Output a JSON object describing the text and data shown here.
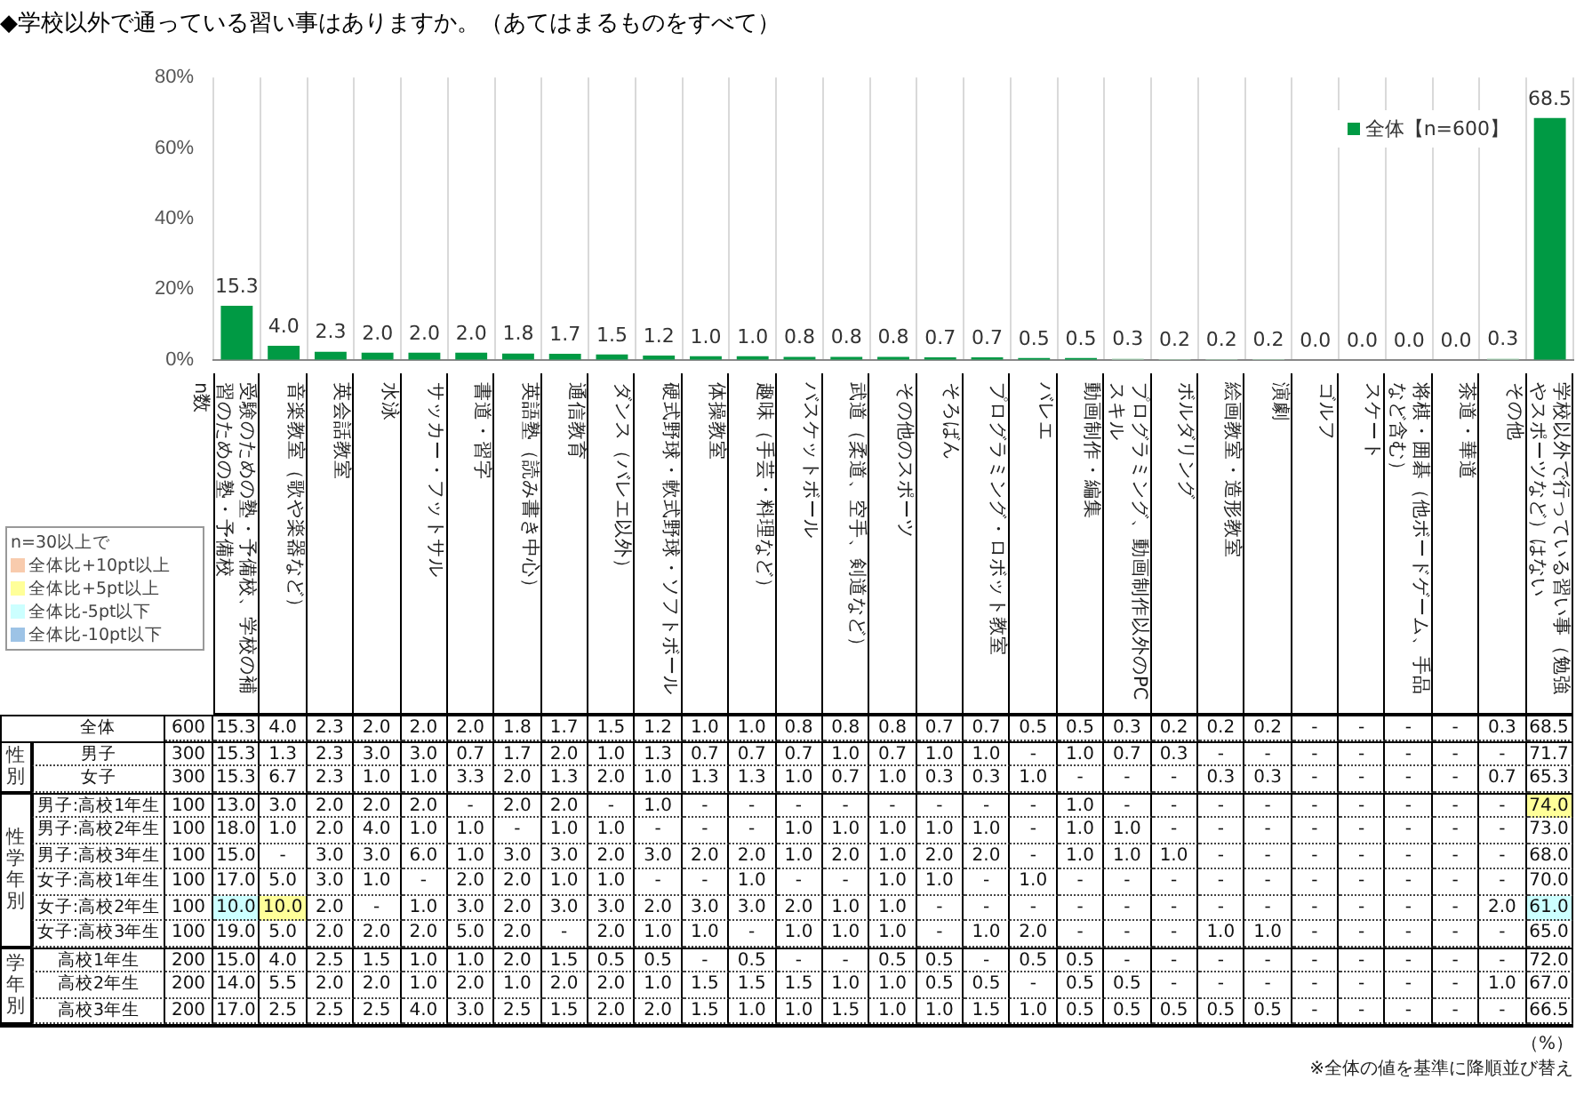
{
  "chart_data": [
    {
      "type": "bar",
      "title": "◆学校以外で通っている習い事はありますか。（あてはまるものをすべて）",
      "categories": [
        null,
        null,
        null,
        null,
        null,
        null,
        null,
        null,
        null,
        null,
        null,
        null,
        null,
        null,
        null,
        null,
        null,
        null,
        null,
        null,
        null,
        null,
        null,
        null,
        null,
        null,
        null,
        null,
        null
      ],
      "series": [
        {
          "name": "全体【n=600】",
          "color": "#009a44",
          "colors": [
            "#009a44",
            "#009a44",
            "#009a44",
            "#009a44",
            "#009a44",
            "#009a44",
            "#009a44",
            "#009a44",
            "#009a44",
            "#009a44",
            "#009a44",
            "#009a44",
            "#009a44",
            "#009a44",
            "#009a44",
            "#009a44",
            "#009a44",
            "#009a44",
            "#009a44",
            "#a8dbb8",
            "#a8dbb8",
            "#a8dbb8",
            "#a8dbb8",
            "#a8dbb8",
            "#a8dbb8",
            "#a8dbb8",
            "#a8dbb8",
            "#a8dbb8",
            "#009a44"
          ],
          "values": [
            15.3,
            4.0,
            2.3,
            2.0,
            2.0,
            2.0,
            1.8,
            1.7,
            1.5,
            1.2,
            1.0,
            1.0,
            0.8,
            0.8,
            0.8,
            0.7,
            0.7,
            0.5,
            0.5,
            0.3,
            0.2,
            0.2,
            0.2,
            0,
            0,
            0,
            0,
            0.3,
            68.5
          ],
          "value_labels": [
            "15.3",
            "4.0",
            "2.3",
            "2.0",
            "2.0",
            "2.0",
            "1.8",
            "1.7",
            "1.5",
            "1.2",
            "1.0",
            "1.0",
            "0.8",
            "0.8",
            "0.8",
            "0.7",
            "0.7",
            "0.5",
            "0.5",
            "0.3",
            "0.2",
            "0.2",
            "0.2",
            "0.0",
            "0.0",
            "0.0",
            "0.0",
            "0.3",
            "68.5"
          ]
        }
      ],
      "ylim": [
        0,
        80
      ],
      "yticks": [
        {
          "value": 0,
          "label": "0%"
        },
        {
          "value": 20,
          "label": "20%"
        },
        {
          "value": 40,
          "label": "40%"
        },
        {
          "value": 60,
          "label": "60%"
        },
        {
          "value": 80,
          "label": "80%"
        }
      ],
      "grid": "x",
      "legend": "top right"
    },
    {
      "type": "heatmap",
      "categories": [
        "n数",
        "受験のための塾・予備校、学校の補習のための塾・予備校",
        "音楽教室（歌や楽器など）",
        "英会話教室",
        "水泳",
        "サッカー・フットサル",
        "書道・習字",
        "英語塾（読み書き中心）",
        "通信教育",
        "ダンス（バレエ以外）",
        "硬式野球・軟式野球・ソフトボール",
        "体操教室",
        "趣味（手芸・料理など）",
        "バスケットボール",
        "武道（柔道、空手、剣道など）",
        "その他のスポーツ",
        "そろばん",
        "プログラミング・ロボット教室",
        "バレエ",
        "動画制作・編集",
        "プログラミング、動画制作以外のPCスキル",
        "ボルダリング",
        "絵画教室・造形教室",
        "演劇",
        "ゴルフ",
        "スケート",
        "将棋・囲碁（他ボードゲーム、手品など含む）",
        "茶道・華道",
        "その他",
        "学校以外で行っている習い事（勉強やスポーツなど）はない"
      ],
      "y_categories": [
        "全体",
        "男子",
        "女子",
        "男子:高校1年生",
        "男子:高校2年生",
        "男子:高校3年生",
        "女子:高校1年生",
        "女子:高校2年生",
        "女子:高校3年生",
        "高校1年生",
        "高校2年生",
        "高校3年生"
      ],
      "cells": [
        [
          600,
          15.3,
          4.0,
          2.3,
          2.0,
          2.0,
          2.0,
          1.8,
          1.7,
          1.5,
          1.2,
          1.0,
          1.0,
          0.8,
          0.8,
          0.8,
          0.7,
          0.7,
          0.5,
          0.5,
          0.3,
          0.2,
          0.2,
          0.2,
          null,
          null,
          null,
          null,
          0.3,
          68.5
        ],
        [
          300,
          15.3,
          1.3,
          2.3,
          3.0,
          3.0,
          0.7,
          1.7,
          2.0,
          1.0,
          1.3,
          0.7,
          0.7,
          0.7,
          1.0,
          0.7,
          1.0,
          1.0,
          null,
          1.0,
          0.7,
          0.3,
          null,
          null,
          null,
          null,
          null,
          null,
          null,
          71.7
        ],
        [
          300,
          15.3,
          6.7,
          2.3,
          1.0,
          1.0,
          3.3,
          2.0,
          1.3,
          2.0,
          1.0,
          1.3,
          1.3,
          1.0,
          0.7,
          1.0,
          0.3,
          0.3,
          1.0,
          null,
          null,
          null,
          0.3,
          0.3,
          null,
          null,
          null,
          null,
          0.7,
          65.3
        ],
        [
          100,
          13.0,
          3.0,
          2.0,
          2.0,
          2.0,
          null,
          2.0,
          2.0,
          null,
          1.0,
          null,
          null,
          null,
          null,
          null,
          null,
          null,
          null,
          1.0,
          null,
          null,
          null,
          null,
          null,
          null,
          null,
          null,
          null,
          74.0
        ],
        [
          100,
          18.0,
          1.0,
          2.0,
          4.0,
          1.0,
          1.0,
          null,
          1.0,
          1.0,
          null,
          null,
          null,
          1.0,
          1.0,
          1.0,
          1.0,
          1.0,
          null,
          1.0,
          1.0,
          null,
          null,
          null,
          null,
          null,
          null,
          null,
          null,
          73.0
        ],
        [
          100,
          15.0,
          null,
          3.0,
          3.0,
          6.0,
          1.0,
          3.0,
          3.0,
          2.0,
          3.0,
          2.0,
          2.0,
          1.0,
          2.0,
          1.0,
          2.0,
          2.0,
          null,
          1.0,
          1.0,
          1.0,
          null,
          null,
          null,
          null,
          null,
          null,
          null,
          68.0
        ],
        [
          100,
          17.0,
          5.0,
          3.0,
          1.0,
          null,
          2.0,
          2.0,
          1.0,
          1.0,
          null,
          null,
          1.0,
          null,
          null,
          1.0,
          1.0,
          null,
          1.0,
          null,
          null,
          null,
          null,
          null,
          null,
          null,
          null,
          null,
          null,
          70.0
        ],
        [
          100,
          10.0,
          10.0,
          2.0,
          null,
          1.0,
          3.0,
          2.0,
          3.0,
          3.0,
          2.0,
          3.0,
          3.0,
          2.0,
          1.0,
          1.0,
          null,
          null,
          null,
          null,
          null,
          null,
          null,
          null,
          null,
          null,
          null,
          null,
          2.0,
          61.0
        ],
        [
          100,
          19.0,
          5.0,
          2.0,
          2.0,
          2.0,
          5.0,
          2.0,
          null,
          2.0,
          1.0,
          1.0,
          null,
          1.0,
          1.0,
          1.0,
          null,
          1.0,
          2.0,
          null,
          null,
          null,
          1.0,
          1.0,
          null,
          null,
          null,
          null,
          null,
          65.0
        ],
        [
          200,
          15.0,
          4.0,
          2.5,
          1.5,
          1.0,
          1.0,
          2.0,
          1.5,
          0.5,
          0.5,
          null,
          0.5,
          null,
          null,
          0.5,
          0.5,
          null,
          0.5,
          0.5,
          null,
          null,
          null,
          null,
          null,
          null,
          null,
          null,
          null,
          72.0
        ],
        [
          200,
          14.0,
          5.5,
          2.0,
          2.0,
          1.0,
          2.0,
          1.0,
          2.0,
          2.0,
          1.0,
          1.5,
          1.5,
          1.5,
          1.0,
          1.0,
          0.5,
          0.5,
          null,
          0.5,
          0.5,
          null,
          null,
          null,
          null,
          null,
          null,
          null,
          1.0,
          67.0
        ],
        [
          200,
          17.0,
          2.5,
          2.5,
          2.5,
          4.0,
          3.0,
          2.5,
          1.5,
          2.0,
          2.0,
          1.5,
          1.0,
          1.0,
          1.5,
          1.0,
          1.0,
          1.5,
          1.0,
          0.5,
          0.5,
          0.5,
          0.5,
          0.5,
          null,
          null,
          null,
          null,
          null,
          66.5
        ]
      ],
      "cell_labels": [
        [
          "600",
          "15.3",
          "4.0",
          "2.3",
          "2.0",
          "2.0",
          "2.0",
          "1.8",
          "1.7",
          "1.5",
          "1.2",
          "1.0",
          "1.0",
          "0.8",
          "0.8",
          "0.8",
          "0.7",
          "0.7",
          "0.5",
          "0.5",
          "0.3",
          "0.2",
          "0.2",
          "0.2",
          "-",
          "-",
          "-",
          "-",
          "0.3",
          "68.5"
        ],
        [
          "300",
          "15.3",
          "1.3",
          "2.3",
          "3.0",
          "3.0",
          "0.7",
          "1.7",
          "2.0",
          "1.0",
          "1.3",
          "0.7",
          "0.7",
          "0.7",
          "1.0",
          "0.7",
          "1.0",
          "1.0",
          "-",
          "1.0",
          "0.7",
          "0.3",
          "-",
          "-",
          "-",
          "-",
          "-",
          "-",
          "-",
          "71.7"
        ],
        [
          "300",
          "15.3",
          "6.7",
          "2.3",
          "1.0",
          "1.0",
          "3.3",
          "2.0",
          "1.3",
          "2.0",
          "1.0",
          "1.3",
          "1.3",
          "1.0",
          "0.7",
          "1.0",
          "0.3",
          "0.3",
          "1.0",
          "-",
          "-",
          "-",
          "0.3",
          "0.3",
          "-",
          "-",
          "-",
          "-",
          "0.7",
          "65.3"
        ],
        [
          "100",
          "13.0",
          "3.0",
          "2.0",
          "2.0",
          "2.0",
          "-",
          "2.0",
          "2.0",
          "-",
          "1.0",
          "-",
          "-",
          "-",
          "-",
          "-",
          "-",
          "-",
          "-",
          "1.0",
          "-",
          "-",
          "-",
          "-",
          "-",
          "-",
          "-",
          "-",
          "-",
          "74.0"
        ],
        [
          "100",
          "18.0",
          "1.0",
          "2.0",
          "4.0",
          "1.0",
          "1.0",
          "-",
          "1.0",
          "1.0",
          "-",
          "-",
          "-",
          "1.0",
          "1.0",
          "1.0",
          "1.0",
          "1.0",
          "-",
          "1.0",
          "1.0",
          "-",
          "-",
          "-",
          "-",
          "-",
          "-",
          "-",
          "-",
          "73.0"
        ],
        [
          "100",
          "15.0",
          "-",
          "3.0",
          "3.0",
          "6.0",
          "1.0",
          "3.0",
          "3.0",
          "2.0",
          "3.0",
          "2.0",
          "2.0",
          "1.0",
          "2.0",
          "1.0",
          "2.0",
          "2.0",
          "-",
          "1.0",
          "1.0",
          "1.0",
          "-",
          "-",
          "-",
          "-",
          "-",
          "-",
          "-",
          "68.0"
        ],
        [
          "100",
          "17.0",
          "5.0",
          "3.0",
          "1.0",
          "-",
          "2.0",
          "2.0",
          "1.0",
          "1.0",
          "-",
          "-",
          "1.0",
          "-",
          "-",
          "1.0",
          "1.0",
          "-",
          "1.0",
          "-",
          "-",
          "-",
          "-",
          "-",
          "-",
          "-",
          "-",
          "-",
          "-",
          "70.0"
        ],
        [
          "100",
          "10.0",
          "10.0",
          "2.0",
          "-",
          "1.0",
          "3.0",
          "2.0",
          "3.0",
          "3.0",
          "2.0",
          "3.0",
          "3.0",
          "2.0",
          "1.0",
          "1.0",
          "-",
          "-",
          "-",
          "-",
          "-",
          "-",
          "-",
          "-",
          "-",
          "-",
          "-",
          "-",
          "2.0",
          "61.0"
        ],
        [
          "100",
          "19.0",
          "5.0",
          "2.0",
          "2.0",
          "2.0",
          "5.0",
          "2.0",
          "-",
          "2.0",
          "1.0",
          "1.0",
          "-",
          "1.0",
          "1.0",
          "1.0",
          "-",
          "1.0",
          "2.0",
          "-",
          "-",
          "-",
          "1.0",
          "1.0",
          "-",
          "-",
          "-",
          "-",
          "-",
          "65.0"
        ],
        [
          "200",
          "15.0",
          "4.0",
          "2.5",
          "1.5",
          "1.0",
          "1.0",
          "2.0",
          "1.5",
          "0.5",
          "0.5",
          "-",
          "0.5",
          "-",
          "-",
          "0.5",
          "0.5",
          "-",
          "0.5",
          "0.5",
          "-",
          "-",
          "-",
          "-",
          "-",
          "-",
          "-",
          "-",
          "-",
          "72.0"
        ],
        [
          "200",
          "14.0",
          "5.5",
          "2.0",
          "2.0",
          "1.0",
          "2.0",
          "1.0",
          "2.0",
          "2.0",
          "1.0",
          "1.5",
          "1.5",
          "1.5",
          "1.0",
          "1.0",
          "0.5",
          "0.5",
          "-",
          "0.5",
          "0.5",
          "-",
          "-",
          "-",
          "-",
          "-",
          "-",
          "-",
          "1.0",
          "67.0"
        ],
        [
          "200",
          "17.0",
          "2.5",
          "2.5",
          "2.5",
          "4.0",
          "3.0",
          "2.5",
          "1.5",
          "2.0",
          "2.0",
          "1.5",
          "1.0",
          "1.0",
          "1.5",
          "1.0",
          "1.0",
          "1.5",
          "1.0",
          "0.5",
          "0.5",
          "0.5",
          "0.5",
          "0.5",
          "-",
          "-",
          "-",
          "-",
          "-",
          "66.5"
        ]
      ],
      "annotations": [
        "性別",
        "性学年別",
        "学年別",
        "n=30以上で",
        "全体比+10pt以上",
        "全体比+5pt以上",
        "全体比-5pt以下",
        "全体比-10pt以下",
        "（%）",
        "※全体の値を基準に降順並び替え"
      ]
    }
  ]
}
